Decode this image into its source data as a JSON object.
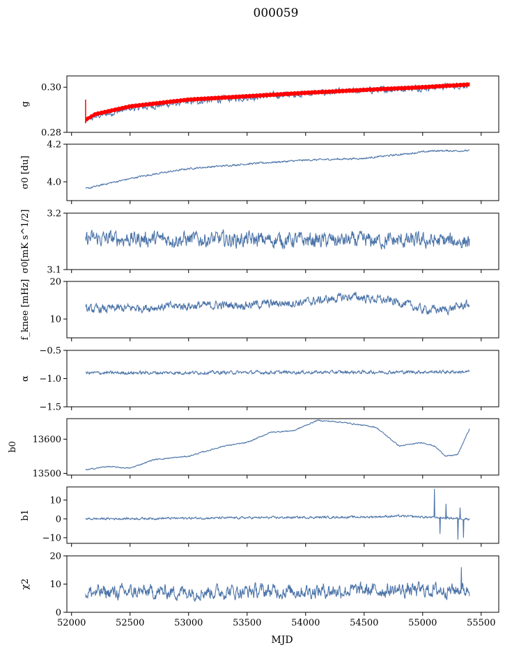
{
  "figure": {
    "title": "000059",
    "xlabel": "MJD"
  },
  "colors": {
    "series": "#4c74a8",
    "fit": "#ff0000",
    "axes": "#000000"
  },
  "chart_data": [
    {
      "type": "line",
      "ylabel": "g",
      "ylim": [
        0.28,
        0.305
      ],
      "yticks": [
        0.28,
        0.3
      ],
      "ytick_labels": [
        "0.28",
        "0.30"
      ],
      "xlim": [
        51960,
        55650
      ],
      "show_xticklabels": false,
      "trend": {
        "x": [
          52120,
          52200,
          52500,
          53000,
          53500,
          54000,
          54500,
          55000,
          55400
        ],
        "y": [
          0.285,
          0.287,
          0.2905,
          0.2935,
          0.2955,
          0.2972,
          0.2985,
          0.2998,
          0.301
        ]
      },
      "noise": 0.0012,
      "fit": {
        "x": [
          52120,
          52200,
          52500,
          53000,
          53500,
          54000,
          54500,
          55000,
          55400
        ],
        "y": [
          0.2855,
          0.288,
          0.2915,
          0.2945,
          0.296,
          0.2975,
          0.2988,
          0.3,
          0.3012
        ],
        "band": 0.0009
      },
      "spike": {
        "x": 52120,
        "y0": 0.284,
        "y1": 0.2945
      }
    },
    {
      "type": "line",
      "ylabel": "σ0 [du]",
      "ylim": [
        3.9,
        4.2
      ],
      "yticks": [
        4.0,
        4.2
      ],
      "ytick_labels": [
        "4.0",
        "4.2"
      ],
      "xlim": [
        51960,
        55650
      ],
      "show_xticklabels": false,
      "trend": {
        "x": [
          52120,
          52300,
          52600,
          53000,
          53500,
          54000,
          54500,
          54800,
          55100,
          55400
        ],
        "y": [
          3.962,
          3.99,
          4.03,
          4.07,
          4.095,
          4.115,
          4.125,
          4.145,
          4.165,
          4.165
        ]
      },
      "noise": 0.004
    },
    {
      "type": "line",
      "ylabel": "σ0[mK s^1/2]",
      "ylim": [
        3.1,
        3.2
      ],
      "yticks": [
        3.1,
        3.2
      ],
      "ytick_labels": [
        "3.1",
        "3.2"
      ],
      "xlim": [
        51960,
        55650
      ],
      "show_xticklabels": false,
      "trend": {
        "x": [
          52120,
          55400
        ],
        "y": [
          3.155,
          3.15
        ]
      },
      "noise": 0.012
    },
    {
      "type": "line",
      "ylabel": "f_knee [mHz]",
      "ylim": [
        5,
        20
      ],
      "yticks": [
        10,
        20
      ],
      "ytick_labels": [
        "10",
        "20"
      ],
      "xlim": [
        51960,
        55650
      ],
      "show_xticklabels": false,
      "trend": {
        "x": [
          52120,
          52600,
          53000,
          53500,
          54000,
          54400,
          54800,
          55000,
          55200,
          55400
        ],
        "y": [
          12.5,
          13.0,
          13.5,
          13.8,
          14.5,
          16.0,
          14.5,
          12.5,
          12.5,
          14.0
        ]
      },
      "noise": 1.0
    },
    {
      "type": "line",
      "ylabel": "α",
      "ylim": [
        -1.5,
        -0.5
      ],
      "yticks": [
        -1.5,
        -1.0,
        -0.5
      ],
      "ytick_labels": [
        "−1.5",
        "−1.0",
        "−0.5"
      ],
      "xlim": [
        51960,
        55650
      ],
      "show_xticklabels": false,
      "trend": {
        "x": [
          52120,
          55400
        ],
        "y": [
          -0.9,
          -0.88
        ]
      },
      "noise": 0.025
    },
    {
      "type": "line",
      "ylabel": "b0",
      "ylim": [
        13495,
        13660
      ],
      "yticks": [
        13500,
        13600
      ],
      "ytick_labels": [
        "13500",
        "13600"
      ],
      "xlim": [
        51960,
        55650
      ],
      "show_xticklabels": false,
      "trend": {
        "x": [
          52120,
          52300,
          52500,
          52700,
          53000,
          53300,
          53500,
          53700,
          53900,
          54100,
          54300,
          54600,
          54800,
          55000,
          55100,
          55200,
          55300,
          55400
        ],
        "y": [
          13510,
          13520,
          13515,
          13540,
          13550,
          13580,
          13590,
          13620,
          13625,
          13655,
          13650,
          13635,
          13580,
          13590,
          13580,
          13550,
          13555,
          13630
        ]
      },
      "noise": 1.5
    },
    {
      "type": "line",
      "ylabel": "b1",
      "ylim": [
        -13,
        17
      ],
      "yticks": [
        -10,
        0,
        10
      ],
      "ytick_labels": [
        "−10",
        "0",
        "10"
      ],
      "xlim": [
        51960,
        55650
      ],
      "show_xticklabels": false,
      "trend": {
        "x": [
          52120,
          54500,
          54800,
          55400
        ],
        "y": [
          0,
          1,
          1.5,
          0
        ]
      },
      "noise": 0.5,
      "bursts": [
        {
          "x": 55100,
          "y": 16
        },
        {
          "x": 55150,
          "y": -8
        },
        {
          "x": 55200,
          "y": 8
        },
        {
          "x": 55300,
          "y": -11
        },
        {
          "x": 55350,
          "y": -10
        },
        {
          "x": 55320,
          "y": 6
        }
      ]
    },
    {
      "type": "line",
      "ylabel": "χ2",
      "ylim": [
        0,
        20
      ],
      "yticks": [
        0,
        10,
        20
      ],
      "ytick_labels": [
        "0",
        "10",
        "20"
      ],
      "xlim": [
        51960,
        55650
      ],
      "show_xticklabels": true,
      "xticks": [
        52000,
        52500,
        53000,
        53500,
        54000,
        54500,
        55000,
        55500
      ],
      "xtick_labels": [
        "52000",
        "52500",
        "53000",
        "53500",
        "54000",
        "54500",
        "55000",
        "55500"
      ],
      "trend": {
        "x": [
          52120,
          55400
        ],
        "y": [
          7,
          8
        ]
      },
      "noise": 2.2,
      "peak": {
        "x": 55330,
        "y": 16
      }
    }
  ]
}
